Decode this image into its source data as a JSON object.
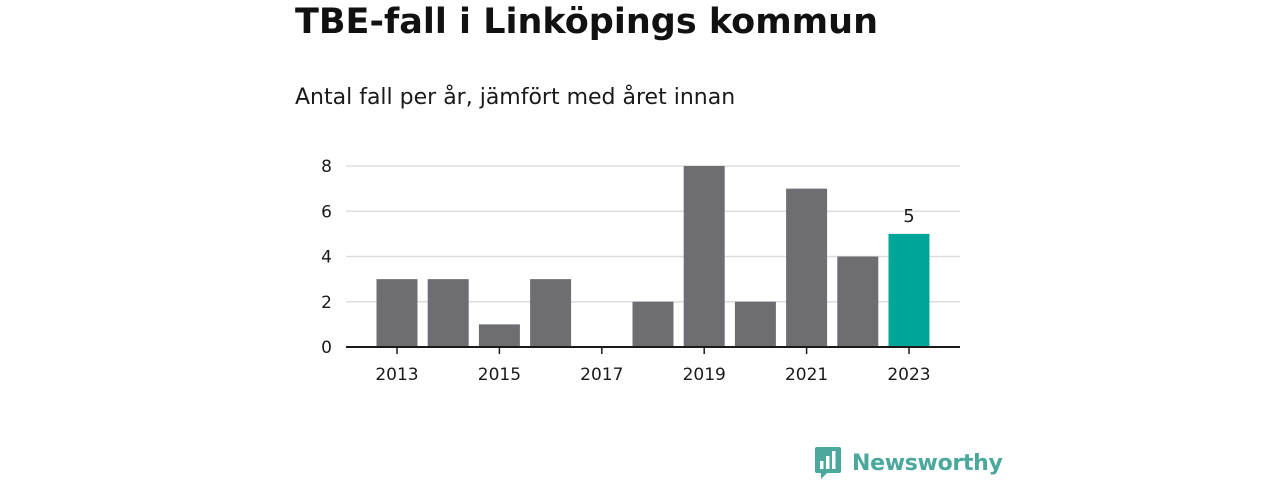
{
  "title": "TBE-fall i Linköpings kommun",
  "subtitle": "Antal fall per år, jämfört med året innan",
  "logo_text": "Newsworthy",
  "chart_data": {
    "type": "bar",
    "title": "TBE-fall i Linköpings kommun",
    "subtitle": "Antal fall per år, jämfört med året innan",
    "xlabel": "",
    "ylabel": "",
    "x": [
      2013,
      2014,
      2015,
      2016,
      2017,
      2018,
      2019,
      2020,
      2021,
      2022,
      2023
    ],
    "values": [
      3,
      3,
      1,
      3,
      0,
      2,
      8,
      2,
      7,
      4,
      5
    ],
    "x_tick_labels": [
      "2013",
      "2015",
      "2017",
      "2019",
      "2021",
      "2023"
    ],
    "y_ticks": [
      0,
      2,
      4,
      6,
      8
    ],
    "ylim": [
      0,
      8
    ],
    "grid": true,
    "highlight": {
      "x": 2023,
      "value": 5,
      "label": "5"
    },
    "colors": {
      "bar": "#6e6d72",
      "highlight": "#00a59a",
      "grid": "#dddddd",
      "axis": "#1a1a1a"
    }
  }
}
